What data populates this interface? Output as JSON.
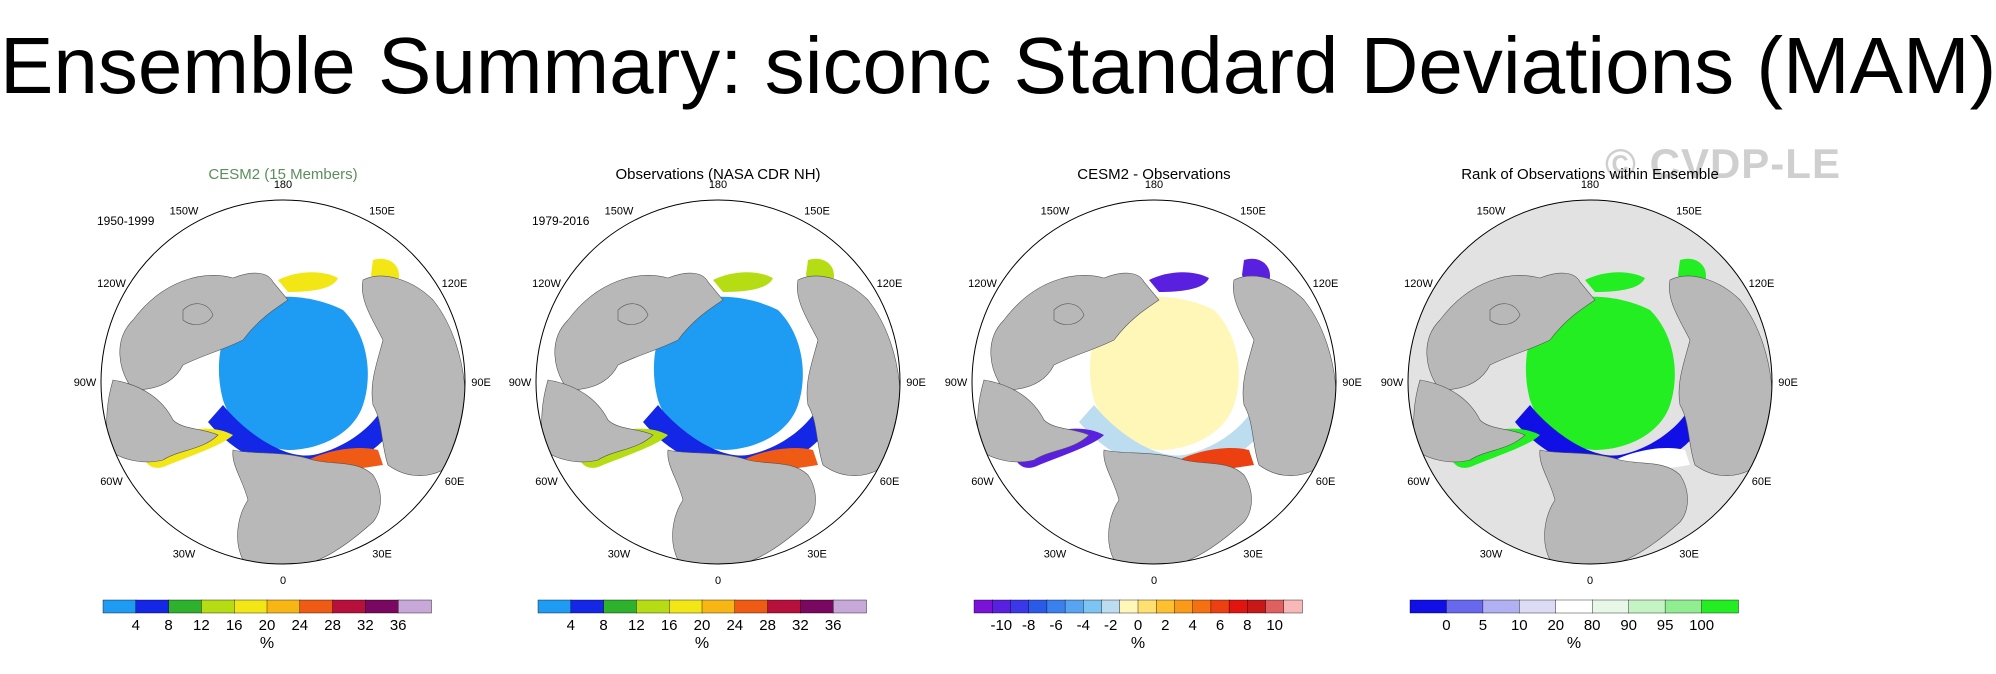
{
  "title": "Ensemble Summary: siconc Standard Deviations (MAM)",
  "watermark": "© CVDP-LE",
  "lon_labels": [
    "180",
    "150E",
    "120E",
    "90E",
    "60E",
    "30E",
    "0",
    "30W",
    "60W",
    "90W",
    "120W",
    "150W"
  ],
  "colors": {
    "land": "#b8b8b8",
    "ocean": "#ffffff",
    "ice_light_blue": "#1f9bf0",
    "rank_bg": "#e2e2e2",
    "rank_green": "#22ee22",
    "rank_blue": "#1111dd"
  },
  "chart_data": [
    {
      "type": "heatmap",
      "title": "CESM2 (15 Members)",
      "title_color": "#5a8f5a",
      "period": "1950-1999",
      "colorbar": {
        "colors": [
          "#1e9bf2",
          "#1427e6",
          "#2eb22e",
          "#b6dc14",
          "#f2e614",
          "#f7b614",
          "#ef5a14",
          "#b8103c",
          "#7a0860",
          "#c8a8d8"
        ],
        "ticks": [
          "4",
          "8",
          "12",
          "16",
          "20",
          "24",
          "28",
          "32",
          "36"
        ],
        "unit": "%"
      }
    },
    {
      "type": "heatmap",
      "title": "Observations (NASA CDR NH)",
      "title_color": "#000000",
      "period": "1979-2016",
      "colorbar": {
        "colors": [
          "#1e9bf2",
          "#1427e6",
          "#2eb22e",
          "#b6dc14",
          "#f2e614",
          "#f7b614",
          "#ef5a14",
          "#b8103c",
          "#7a0860",
          "#c8a8d8"
        ],
        "ticks": [
          "4",
          "8",
          "12",
          "16",
          "20",
          "24",
          "28",
          "32",
          "36"
        ],
        "unit": "%"
      }
    },
    {
      "type": "heatmap",
      "title": "CESM2 - Observations",
      "title_color": "#000000",
      "period": "",
      "colorbar": {
        "colors": [
          "#7a12d8",
          "#5a20e0",
          "#3a38e8",
          "#2c5ae8",
          "#3a80ee",
          "#56a4f2",
          "#7cc4f4",
          "#bcdcf0",
          "#fff7b8",
          "#ffe070",
          "#ffc030",
          "#fa9a18",
          "#f47010",
          "#ec4010",
          "#e21410",
          "#c81818",
          "#e06060",
          "#f8b8b8"
        ],
        "ticks": [
          "-10",
          "-8",
          "-6",
          "-4",
          "-2",
          "0",
          "2",
          "4",
          "6",
          "8",
          "10"
        ],
        "unit": "%"
      }
    },
    {
      "type": "heatmap",
      "title": "Rank of Observations within Ensemble",
      "title_color": "#000000",
      "period": "",
      "colorbar": {
        "colors": [
          "#1010e6",
          "#6868ee",
          "#b0b0f2",
          "#dcdcf6",
          "#ffffff",
          "#e8f8e8",
          "#c4f4c4",
          "#90ee90",
          "#22ee22"
        ],
        "ticks": [
          "0",
          "5",
          "10",
          "20",
          "80",
          "90",
          "95",
          "100"
        ],
        "unit": "%"
      }
    }
  ]
}
